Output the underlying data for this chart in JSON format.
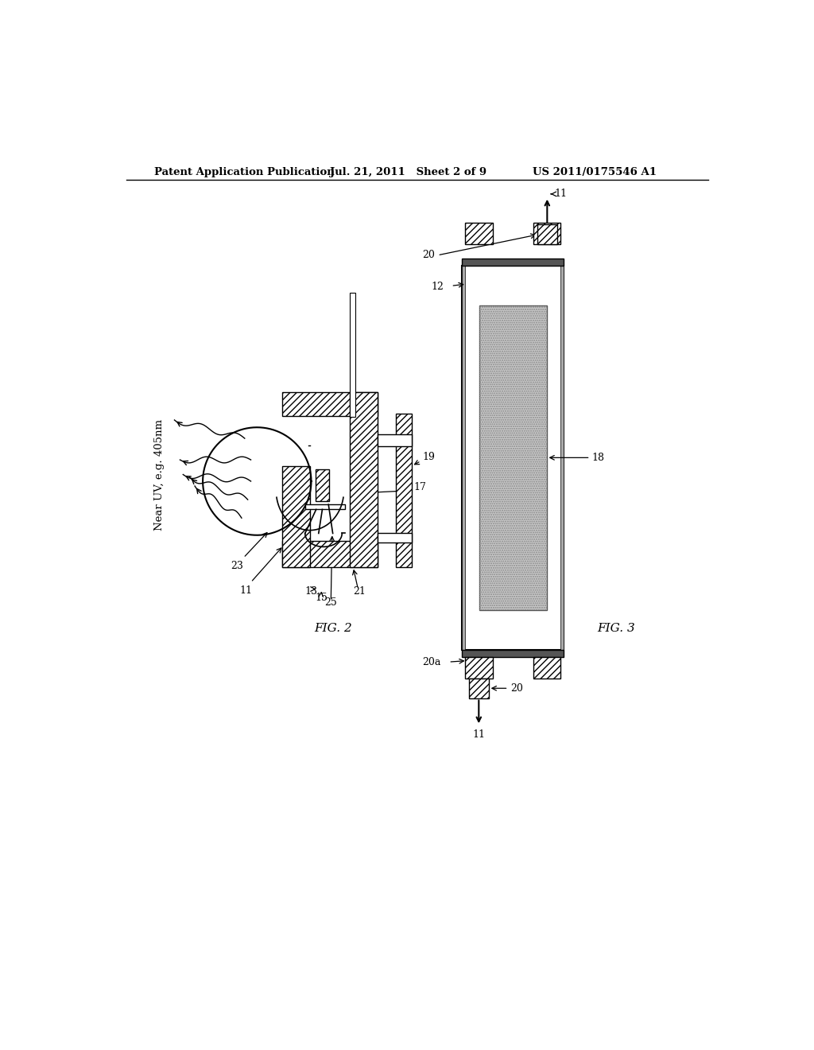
{
  "bg_color": "#ffffff",
  "header_left": "Patent Application Publication",
  "header_mid": "Jul. 21, 2011   Sheet 2 of 9",
  "header_right": "US 2011/0175546 A1",
  "fig2_label": "FIG. 2",
  "fig3_label": "FIG. 3",
  "uv_label": "Near UV, e.g. 405nm"
}
